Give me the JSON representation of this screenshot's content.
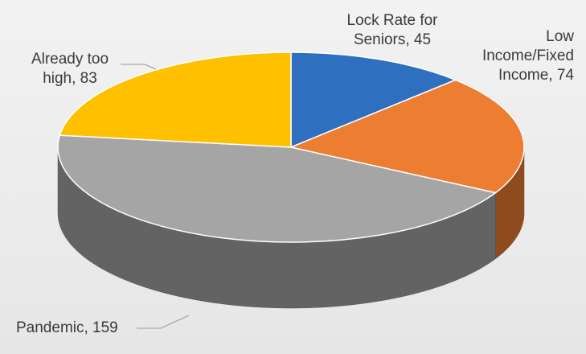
{
  "chart_data": {
    "type": "pie",
    "values": [
      45,
      74,
      159,
      83
    ],
    "value_labels": [
      "Lock Rate for Seniors, 45",
      "Low Income/Fixed Income, 74",
      "Pandemic, 159",
      "Already too high, 83"
    ],
    "colors": [
      "#2e6fc0",
      "#ed7d31",
      "#a5a5a5",
      "#ffc000"
    ]
  }
}
